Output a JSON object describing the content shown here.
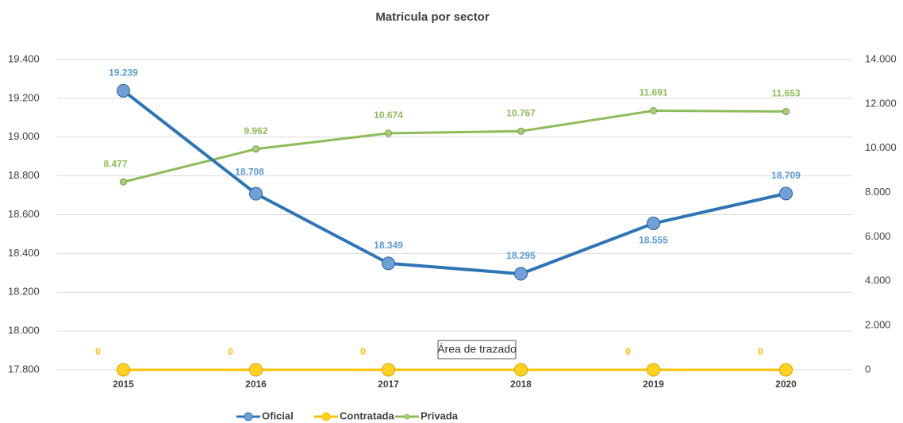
{
  "chart_data": {
    "type": "line",
    "title": "Matricula por sector",
    "categories": [
      "2015",
      "2016",
      "2017",
      "2018",
      "2019",
      "2020"
    ],
    "ylim": [
      17800,
      19400
    ],
    "yticks": [
      {
        "value": 17800,
        "label": "17.800"
      },
      {
        "value": 18000,
        "label": "18.000"
      },
      {
        "value": 18200,
        "label": "18.200"
      },
      {
        "value": 18400,
        "label": "18.400"
      },
      {
        "value": 18600,
        "label": "18.600"
      },
      {
        "value": 18800,
        "label": "18.800"
      },
      {
        "value": 19000,
        "label": "19.000"
      },
      {
        "value": 19200,
        "label": "19.200"
      },
      {
        "value": 19400,
        "label": "19.400"
      }
    ],
    "y2lim": [
      0,
      14000
    ],
    "y2ticks": [
      0,
      {
        "value": 2000,
        "label": "2.000"
      },
      {
        "value": 4000,
        "label": "4.000"
      },
      {
        "value": 6000,
        "label": "6.000"
      },
      {
        "value": 8000,
        "label": "8.000"
      },
      {
        "value": 10000,
        "label": "10.000"
      },
      {
        "value": 12000,
        "label": "12.000"
      },
      {
        "value": 14000,
        "label": "14.000"
      }
    ],
    "grid": true,
    "legend": "bottom",
    "series": [
      {
        "name": "Oficial",
        "color": "#2e75b6",
        "values": [
          19239,
          18708,
          18349,
          18295,
          18555,
          18709
        ],
        "value_labels": [
          "19.239",
          "18.708",
          "18.349",
          "18.295",
          "18.555",
          "18.709"
        ]
      },
      {
        "name": "Contratada",
        "color": "#ffc000",
        "axis": "y2",
        "values": [
          0,
          0,
          0,
          0,
          0,
          0
        ]
      },
      {
        "name": "Privada",
        "color": "#8fbc5a",
        "axis": "y2",
        "values": [
          8477,
          9962,
          10674,
          10767,
          11691,
          11653
        ],
        "value_labels": [
          "8.477",
          "9.962",
          "10.674",
          "10.767",
          "11.691",
          "11.653"
        ]
      }
    ],
    "tooltip": "Área de trazado"
  }
}
